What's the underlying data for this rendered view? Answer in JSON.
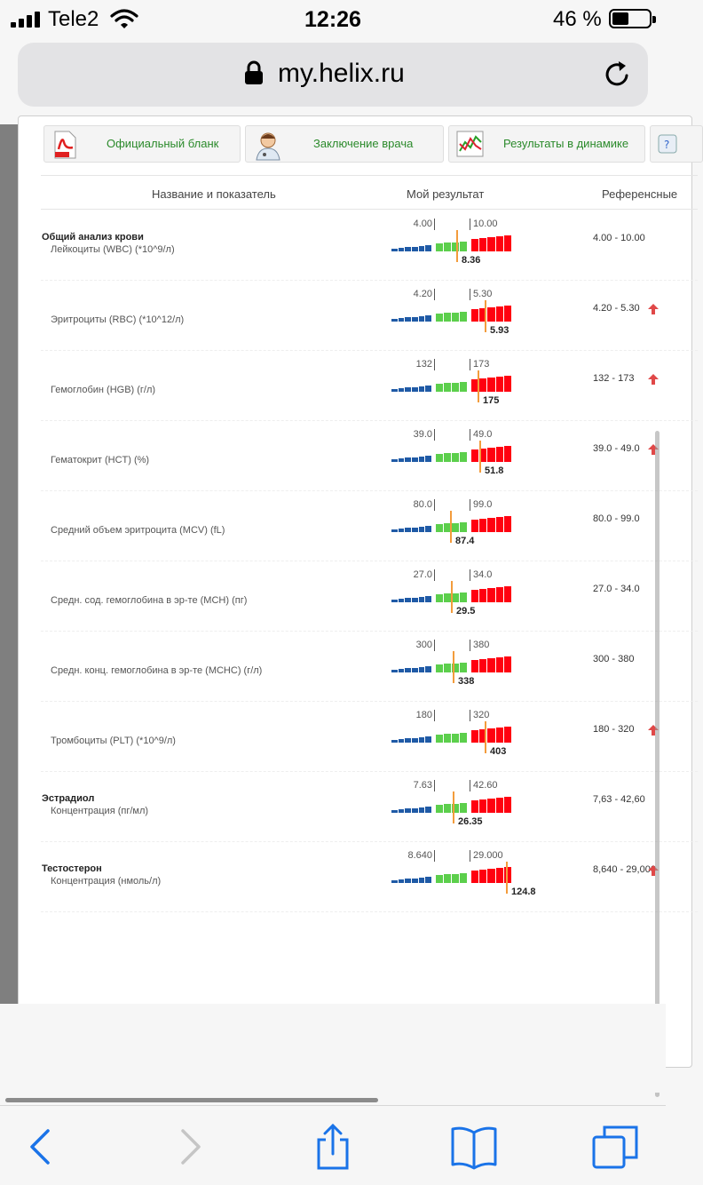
{
  "status": {
    "carrier": "Tele2",
    "time": "12:26",
    "battery": "46 %",
    "battery_level": 0.46
  },
  "browser": {
    "url": "my.helix.ru"
  },
  "toolbar": {
    "official_form": "Официальный бланк",
    "doctor_conclusion": "Заключение врача",
    "results_dynamics": "Результаты в динамике"
  },
  "table": {
    "col_name": "Название и показатель",
    "col_result": "Мой результат",
    "col_reference": "Референсные"
  },
  "rows": [
    {
      "group": "Общий анализ крови",
      "name": "Лейкоциты (WBC) (*10^9/л)",
      "low": "4.00",
      "high": "10.00",
      "value": "8.36",
      "ref": "4.00 - 10.00",
      "flag": "",
      "pos": 0.52
    },
    {
      "group": "",
      "name": "Эритроциты (RBC) (*10^12/л)",
      "low": "4.20",
      "high": "5.30",
      "value": "5.93",
      "ref": "4.20 - 5.30",
      "flag": "up",
      "pos": 0.75
    },
    {
      "group": "",
      "name": "Гемоглобин (HGB) (г/л)",
      "low": "132",
      "high": "173",
      "value": "175",
      "ref": "132 - 173",
      "flag": "up",
      "pos": 0.69
    },
    {
      "group": "",
      "name": "Гематокрит (HCT) (%)",
      "low": "39.0",
      "high": "49.0",
      "value": "51.8",
      "ref": "39.0 - 49.0",
      "flag": "up",
      "pos": 0.71
    },
    {
      "group": "",
      "name": "Средний объем эритроцита (MCV) (fL)",
      "low": "80.0",
      "high": "99.0",
      "value": "87.4",
      "ref": "80.0 - 99.0",
      "flag": "",
      "pos": 0.47
    },
    {
      "group": "",
      "name": "Средн. сод. гемоглобина в эр-те (MCH) (пг)",
      "low": "27.0",
      "high": "34.0",
      "value": "29.5",
      "ref": "27.0 - 34.0",
      "flag": "",
      "pos": 0.48
    },
    {
      "group": "",
      "name": "Средн. конц. гемоглобина в эр-те (MCHC) (г/л)",
      "low": "300",
      "high": "380",
      "value": "338",
      "ref": "300 - 380",
      "flag": "",
      "pos": 0.49
    },
    {
      "group": "",
      "name": "Тромбоциты (PLT) (*10^9/л)",
      "low": "180",
      "high": "320",
      "value": "403",
      "ref": "180 - 320",
      "flag": "up",
      "pos": 0.75
    },
    {
      "group": "Эстрадиол",
      "name": "Концентрация (пг/мл)",
      "low": "7.63",
      "high": "42.60",
      "value": "26.35",
      "ref": "7,63 - 42,60",
      "flag": "",
      "pos": 0.49
    },
    {
      "group": "Тестостерон",
      "name": "Концентрация (нмоль/л)",
      "low": "8.640",
      "high": "29.000",
      "value": "124.8",
      "ref": "8,640 - 29,000",
      "flag": "up",
      "pos": 0.92
    }
  ],
  "colors": {
    "low": "#1f5aa6",
    "normal": "#5ccf4c",
    "high": "#ff0010",
    "marker": "#f39c3c",
    "link": "#2b8a2b"
  }
}
